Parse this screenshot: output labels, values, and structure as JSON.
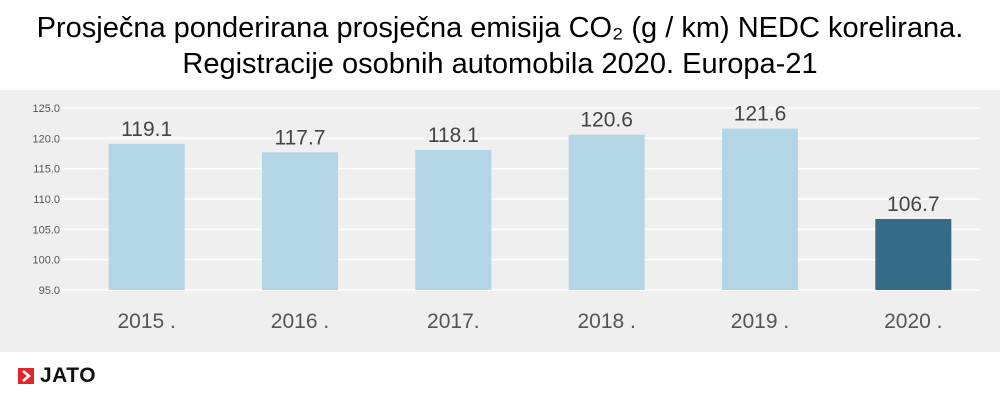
{
  "title_line1": "Prosječna ponderirana prosječna emisija CO₂ (g / km) NEDC korelirana.",
  "title_line2": "Registracije osobnih automobila 2020. Europa-21",
  "brand": "JATO",
  "colors": {
    "bar_default": "#b3d6e6",
    "bar_highlight": "#346b86",
    "plot_background": "#efefef",
    "gridline": "#ffffff",
    "logo_red": "#e0262b"
  },
  "chart_data": {
    "type": "bar",
    "categories": [
      "2015 .",
      "2016 .",
      "2017.",
      "2018 .",
      "2019 .",
      "2020 ."
    ],
    "values": [
      119.1,
      117.7,
      118.1,
      120.6,
      121.6,
      106.7
    ],
    "value_labels": [
      "119.1",
      "117.7",
      "118.1",
      "120.6",
      "121.6",
      "106.7"
    ],
    "highlight_index": 5,
    "title": "",
    "xlabel": "",
    "ylabel": "",
    "ylim": [
      95,
      125
    ],
    "yticks": [
      95,
      100,
      105,
      110,
      115,
      120,
      125
    ],
    "ytick_labels": [
      "95.0",
      "100.0",
      "105.0",
      "110.0",
      "115.0",
      "120.0",
      "125.0"
    ],
    "grid": true,
    "legend": "none"
  }
}
